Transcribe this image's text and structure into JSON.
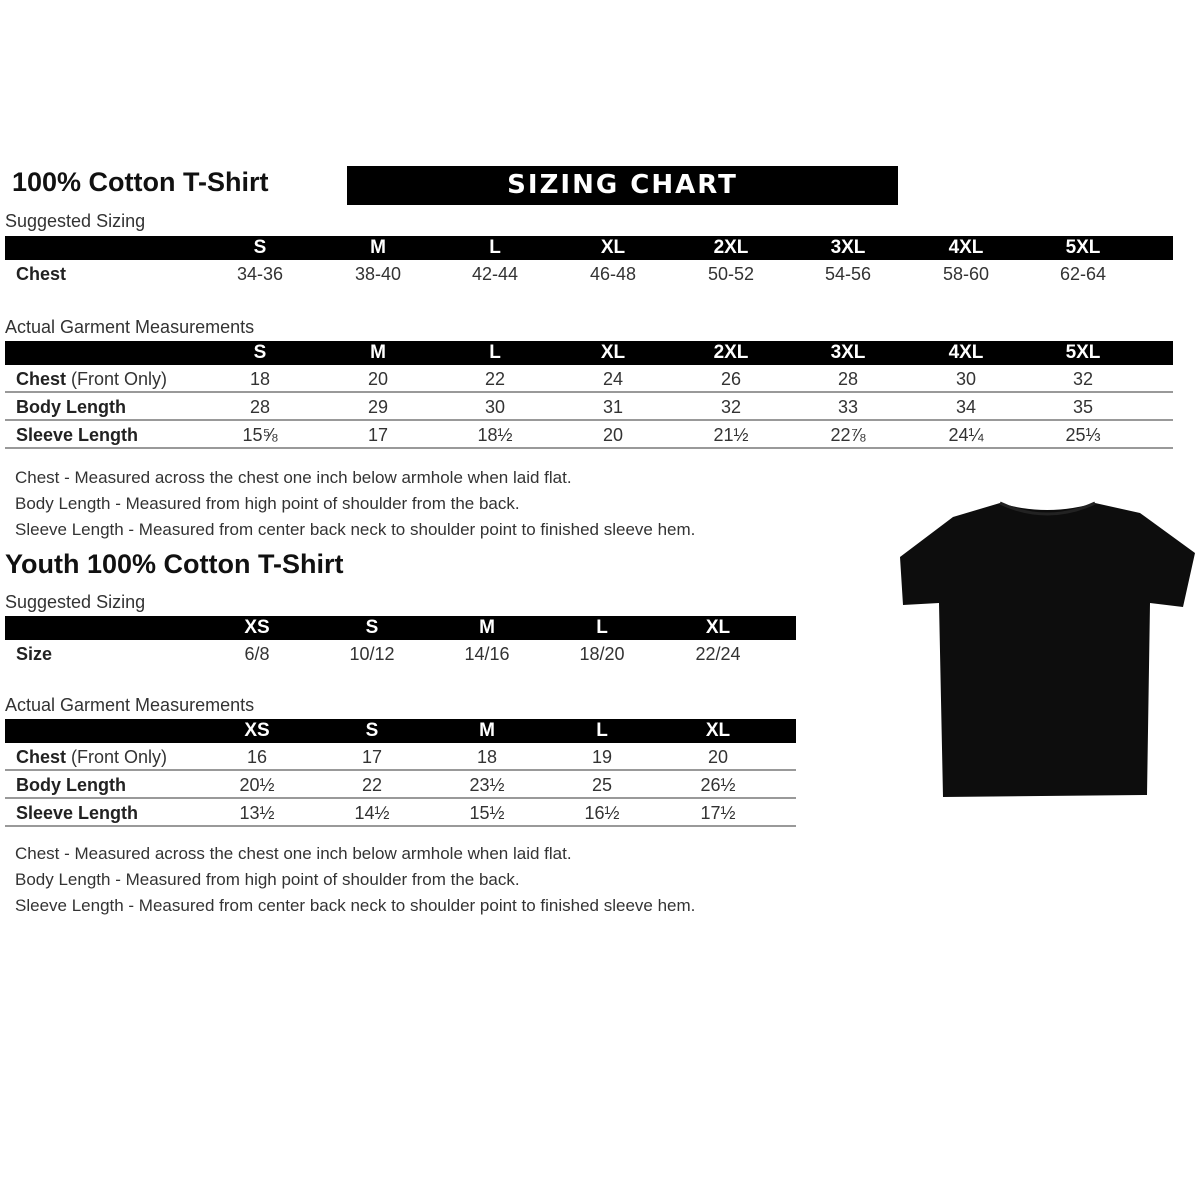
{
  "adult": {
    "title": "100% Cotton T-Shirt",
    "banner": "SIZING CHART",
    "suggested_label": "Suggested Sizing",
    "sizes": [
      "S",
      "M",
      "L",
      "XL",
      "2XL",
      "3XL",
      "4XL",
      "5XL"
    ],
    "suggested_rows": [
      {
        "label": "Chest",
        "label_rest": "",
        "values": [
          "34-36",
          "38-40",
          "42-44",
          "46-48",
          "50-52",
          "54-56",
          "58-60",
          "62-64"
        ]
      }
    ],
    "actual_label": "Actual Garment Measurements",
    "actual_rows": [
      {
        "label": "Chest",
        "label_rest": " (Front Only)",
        "values": [
          "18",
          "20",
          "22",
          "24",
          "26",
          "28",
          "30",
          "32"
        ]
      },
      {
        "label": "Body Length",
        "label_rest": "",
        "values": [
          "28",
          "29",
          "30",
          "31",
          "32",
          "33",
          "34",
          "35"
        ]
      },
      {
        "label": "Sleeve Length",
        "label_rest": "",
        "values": [
          "15⅝",
          "17",
          "18½",
          "20",
          "21½",
          "22⅞",
          "24¼",
          "25⅓"
        ]
      }
    ],
    "notes": [
      "Chest - Measured across the chest one inch below armhole when laid flat.",
      "Body Length - Measured from high point of shoulder from the back.",
      "Sleeve Length - Measured from center back neck to shoulder point to finished sleeve hem."
    ]
  },
  "youth": {
    "title": "Youth 100% Cotton T-Shirt",
    "suggested_label": "Suggested Sizing",
    "sizes": [
      "XS",
      "S",
      "M",
      "L",
      "XL"
    ],
    "suggested_rows": [
      {
        "label": "Size",
        "label_rest": "",
        "values": [
          "6/8",
          "10/12",
          "14/16",
          "18/20",
          "22/24"
        ]
      }
    ],
    "actual_label": "Actual Garment Measurements",
    "actual_rows": [
      {
        "label": "Chest",
        "label_rest": " (Front Only)",
        "values": [
          "16",
          "17",
          "18",
          "19",
          "20"
        ]
      },
      {
        "label": "Body Length",
        "label_rest": "",
        "values": [
          "20½",
          "22",
          "23½",
          "25",
          "26½"
        ]
      },
      {
        "label": "Sleeve Length",
        "label_rest": "",
        "values": [
          "13½",
          "14½",
          "15½",
          "16½",
          "17½"
        ]
      }
    ],
    "notes": [
      "Chest - Measured across the chest one inch below armhole when laid flat.",
      "Body Length - Measured from high point of shoulder from the back.",
      "Sleeve Length - Measured from center back neck to shoulder point to finished sleeve hem."
    ]
  },
  "image": {
    "icon": "black-tshirt-icon",
    "color": "#0d0d0d"
  }
}
